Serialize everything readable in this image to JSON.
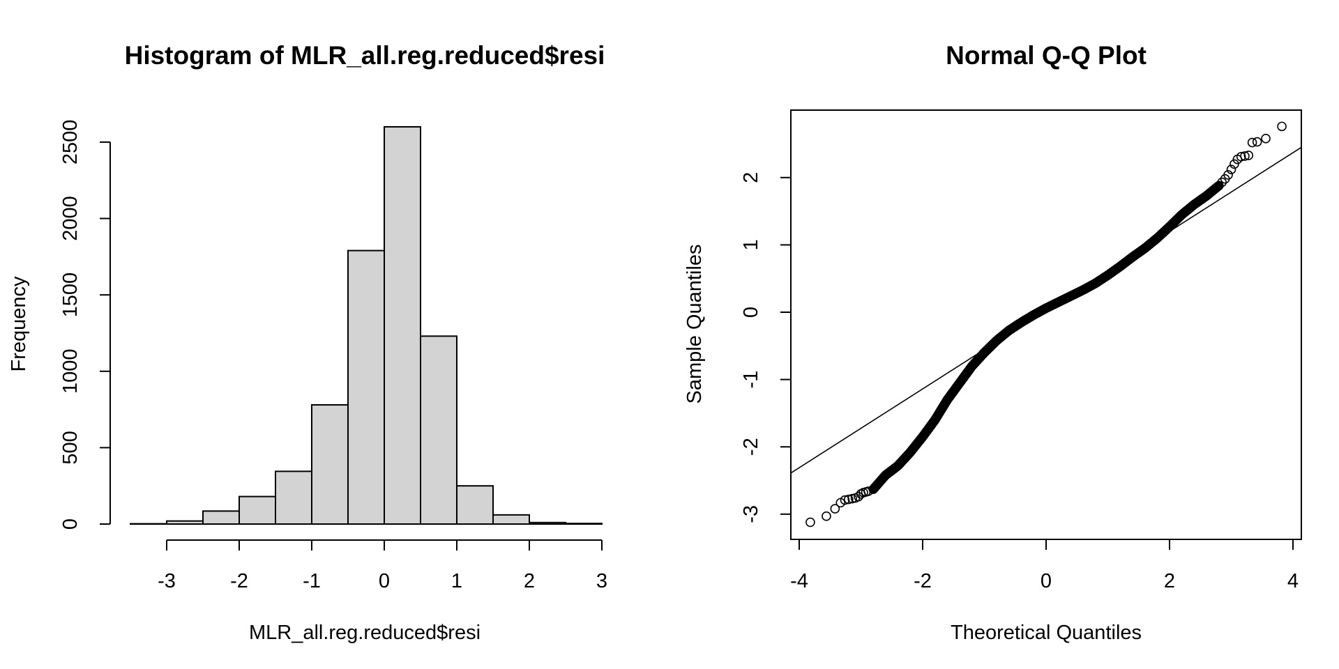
{
  "chart_data": [
    {
      "type": "bar",
      "title": "Histogram of MLR_all.reg.reduced$resi",
      "xlabel": "MLR_all.reg.reduced$resi",
      "ylabel": "Frequency",
      "bins": [
        {
          "from": -3.5,
          "to": -3.0,
          "count": 2
        },
        {
          "from": -3.0,
          "to": -2.5,
          "count": 20
        },
        {
          "from": -2.5,
          "to": -2.0,
          "count": 85
        },
        {
          "from": -2.0,
          "to": -1.5,
          "count": 180
        },
        {
          "from": -1.5,
          "to": -1.0,
          "count": 345
        },
        {
          "from": -1.0,
          "to": -0.5,
          "count": 780
        },
        {
          "from": -0.5,
          "to": 0.0,
          "count": 1790
        },
        {
          "from": 0.0,
          "to": 0.5,
          "count": 2600
        },
        {
          "from": 0.5,
          "to": 1.0,
          "count": 1230
        },
        {
          "from": 1.0,
          "to": 1.5,
          "count": 250
        },
        {
          "from": 1.5,
          "to": 2.0,
          "count": 60
        },
        {
          "from": 2.0,
          "to": 2.5,
          "count": 10
        },
        {
          "from": 2.5,
          "to": 3.0,
          "count": 4
        }
      ],
      "xticks": [
        -3,
        -2,
        -1,
        0,
        1,
        2,
        3
      ],
      "yticks": [
        0,
        500,
        1000,
        1500,
        2000,
        2500
      ],
      "xlim": [
        -3.5,
        3.0
      ],
      "ylim": [
        0,
        2600
      ],
      "grid": false
    },
    {
      "type": "scatter",
      "title": "Normal Q-Q Plot",
      "xlabel": "Theoretical Quantiles",
      "ylabel": "Sample Quantiles",
      "xticks": [
        -4,
        -2,
        0,
        2,
        4
      ],
      "yticks": [
        -3,
        -2,
        -1,
        0,
        1,
        2
      ],
      "xlim": [
        -4.1,
        4.1
      ],
      "ylim": [
        -3.3,
        2.95
      ],
      "grid": false,
      "reference_line": {
        "intercept": 0.03,
        "slope": 0.585
      },
      "tail_points": [
        {
          "x": -3.82,
          "y": -3.12
        },
        {
          "x": -3.56,
          "y": -3.03
        },
        {
          "x": -3.42,
          "y": -2.92
        },
        {
          "x": -3.33,
          "y": -2.83
        },
        {
          "x": -3.26,
          "y": -2.79
        },
        {
          "x": -3.2,
          "y": -2.78
        },
        {
          "x": -3.14,
          "y": -2.77
        },
        {
          "x": -3.09,
          "y": -2.76
        },
        {
          "x": -3.04,
          "y": -2.74
        },
        {
          "x": -3.0,
          "y": -2.7
        },
        {
          "x": -2.96,
          "y": -2.68
        },
        {
          "x": -2.92,
          "y": -2.67
        },
        {
          "x": -2.88,
          "y": -2.66
        },
        {
          "x": 2.85,
          "y": 1.93
        },
        {
          "x": 2.9,
          "y": 1.98
        },
        {
          "x": 2.95,
          "y": 2.04
        },
        {
          "x": 3.0,
          "y": 2.12
        },
        {
          "x": 3.05,
          "y": 2.2
        },
        {
          "x": 3.1,
          "y": 2.27
        },
        {
          "x": 3.16,
          "y": 2.31
        },
        {
          "x": 3.22,
          "y": 2.32
        },
        {
          "x": 3.28,
          "y": 2.33
        },
        {
          "x": 3.34,
          "y": 2.52
        },
        {
          "x": 3.42,
          "y": 2.53
        },
        {
          "x": 3.56,
          "y": 2.58
        },
        {
          "x": 3.82,
          "y": 2.76
        }
      ],
      "body_curve": [
        {
          "x": -2.8,
          "y": -2.63
        },
        {
          "x": -2.6,
          "y": -2.42
        },
        {
          "x": -2.4,
          "y": -2.28
        },
        {
          "x": -2.2,
          "y": -2.08
        },
        {
          "x": -2.0,
          "y": -1.85
        },
        {
          "x": -1.8,
          "y": -1.6
        },
        {
          "x": -1.6,
          "y": -1.3
        },
        {
          "x": -1.4,
          "y": -1.05
        },
        {
          "x": -1.2,
          "y": -0.8
        },
        {
          "x": -1.0,
          "y": -0.6
        },
        {
          "x": -0.8,
          "y": -0.42
        },
        {
          "x": -0.6,
          "y": -0.27
        },
        {
          "x": -0.4,
          "y": -0.15
        },
        {
          "x": -0.2,
          "y": -0.04
        },
        {
          "x": 0.0,
          "y": 0.06
        },
        {
          "x": 0.2,
          "y": 0.15
        },
        {
          "x": 0.4,
          "y": 0.24
        },
        {
          "x": 0.6,
          "y": 0.33
        },
        {
          "x": 0.8,
          "y": 0.43
        },
        {
          "x": 1.0,
          "y": 0.55
        },
        {
          "x": 1.2,
          "y": 0.68
        },
        {
          "x": 1.4,
          "y": 0.82
        },
        {
          "x": 1.6,
          "y": 0.95
        },
        {
          "x": 1.8,
          "y": 1.1
        },
        {
          "x": 2.0,
          "y": 1.27
        },
        {
          "x": 2.2,
          "y": 1.45
        },
        {
          "x": 2.4,
          "y": 1.6
        },
        {
          "x": 2.6,
          "y": 1.73
        },
        {
          "x": 2.8,
          "y": 1.88
        }
      ]
    }
  ]
}
